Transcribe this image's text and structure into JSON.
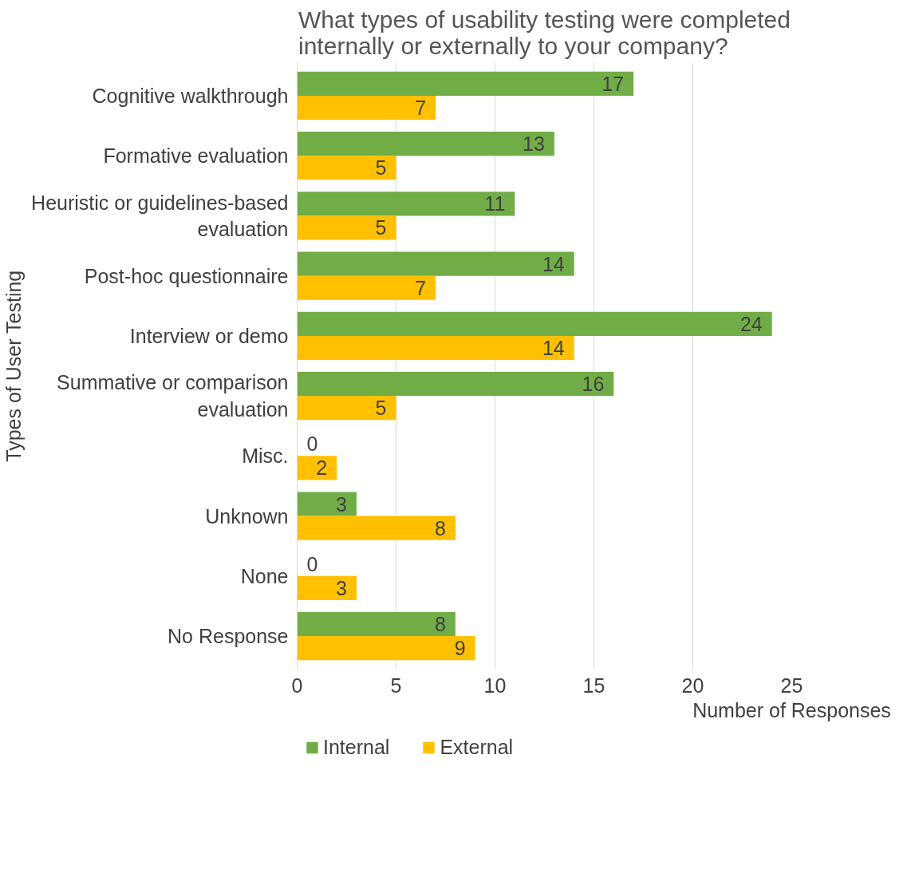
{
  "chart_data": {
    "type": "bar",
    "orientation": "horizontal",
    "title": "What types of usability testing were completed internally or externally to your company?",
    "xlabel": "Number of Responses",
    "ylabel": "Types of User Testing",
    "categories": [
      "Cognitive walkthrough",
      "Formative evaluation",
      "Heuristic or guidelines-based evaluation",
      "Post-hoc questionnaire",
      "Interview or demo",
      "Summative or comparison evaluation",
      "Misc.",
      "Unknown",
      "None",
      "No Response"
    ],
    "series": [
      {
        "name": "Internal",
        "color": "#70ad47",
        "values": [
          17,
          13,
          11,
          14,
          24,
          16,
          0,
          3,
          0,
          8
        ]
      },
      {
        "name": "External",
        "color": "#ffc000",
        "values": [
          7,
          5,
          5,
          7,
          14,
          5,
          2,
          8,
          3,
          9
        ]
      }
    ],
    "xlim": [
      0,
      25
    ],
    "xticks": [
      0,
      5,
      10,
      15,
      20,
      25
    ],
    "grid": "x",
    "legend": "bottom left",
    "data_labels": true
  }
}
